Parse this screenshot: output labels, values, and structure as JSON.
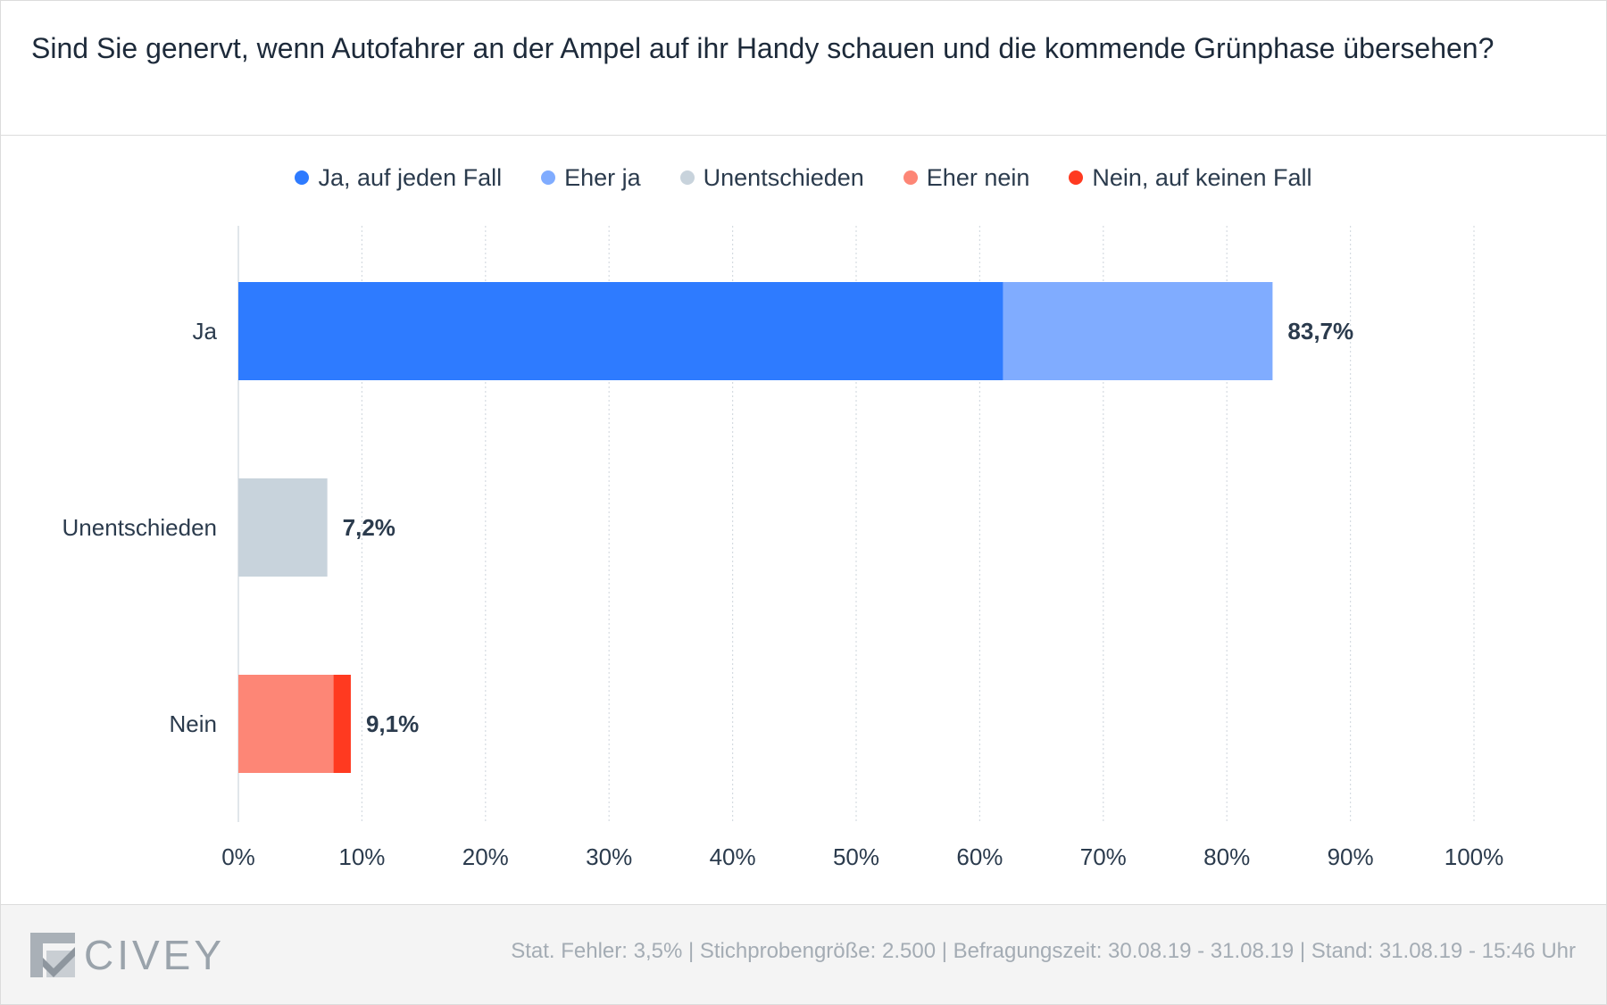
{
  "title": "Sind Sie genervt, wenn Autofahrer an der Ampel auf ihr Handy schauen und die kommende Grünphase übersehen?",
  "legend": [
    {
      "label": "Ja, auf jeden Fall",
      "color": "#2e7bff"
    },
    {
      "label": "Eher ja",
      "color": "#80acff"
    },
    {
      "label": "Unentschieden",
      "color": "#c8d3dc"
    },
    {
      "label": "Eher nein",
      "color": "#fd8676"
    },
    {
      "label": "Nein, auf keinen Fall",
      "color": "#ff3a20"
    }
  ],
  "chart_data": {
    "type": "bar",
    "orientation": "horizontal",
    "stacked": true,
    "categories": [
      "Ja",
      "Unentschieden",
      "Nein"
    ],
    "series": [
      {
        "name": "Ja, auf jeden Fall",
        "color": "#2e7bff",
        "values": [
          61.9,
          0,
          0
        ]
      },
      {
        "name": "Eher ja",
        "color": "#80acff",
        "values": [
          21.8,
          0,
          0
        ]
      },
      {
        "name": "Unentschieden",
        "color": "#c8d3dc",
        "values": [
          0,
          7.2,
          0
        ]
      },
      {
        "name": "Eher nein",
        "color": "#fd8676",
        "values": [
          0,
          0,
          7.7
        ]
      },
      {
        "name": "Nein, auf keinen Fall",
        "color": "#ff3a20",
        "values": [
          0,
          0,
          1.4
        ]
      }
    ],
    "totals": [
      "83,7%",
      "7,2%",
      "9,1%"
    ],
    "xlim": [
      0,
      100
    ],
    "xticks": [
      "0%",
      "10%",
      "20%",
      "30%",
      "40%",
      "50%",
      "60%",
      "70%",
      "80%",
      "90%",
      "100%"
    ],
    "grid": "vertical-dotted",
    "legend_position": "top-center"
  },
  "footer": {
    "brand": "CIVEY",
    "meta": "Stat. Fehler: 3,5% | Stichprobengröße: 2.500 | Befragungszeit: 30.08.19 - 31.08.19 | Stand: 31.08.19 - 15:46 Uhr"
  }
}
